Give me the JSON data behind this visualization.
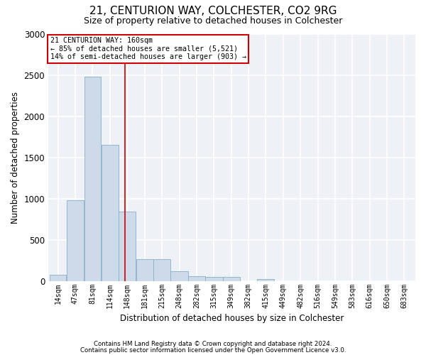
{
  "title1": "21, CENTURION WAY, COLCHESTER, CO2 9RG",
  "title2": "Size of property relative to detached houses in Colchester",
  "xlabel": "Distribution of detached houses by size in Colchester",
  "ylabel": "Number of detached properties",
  "bar_color": "#ccdaea",
  "bar_edge_color": "#8aafc8",
  "categories": [
    "14sqm",
    "47sqm",
    "81sqm",
    "114sqm",
    "148sqm",
    "181sqm",
    "215sqm",
    "248sqm",
    "282sqm",
    "315sqm",
    "349sqm",
    "382sqm",
    "415sqm",
    "449sqm",
    "482sqm",
    "516sqm",
    "549sqm",
    "583sqm",
    "616sqm",
    "650sqm",
    "683sqm"
  ],
  "values": [
    75,
    980,
    2480,
    1650,
    840,
    260,
    265,
    115,
    60,
    48,
    48,
    0,
    25,
    0,
    0,
    0,
    0,
    0,
    0,
    0,
    0
  ],
  "ylim": [
    0,
    3000
  ],
  "yticks": [
    0,
    500,
    1000,
    1500,
    2000,
    2500,
    3000
  ],
  "red_line_x": 160,
  "annotation_line1": "21 CENTURION WAY: 160sqm",
  "annotation_line2": "← 85% of detached houses are smaller (5,521)",
  "annotation_line3": "14% of semi-detached houses are larger (903) →",
  "annotation_box_color": "#ffffff",
  "annotation_box_edge": "#cc0000",
  "red_line_color": "#cc0000",
  "footer1": "Contains HM Land Registry data © Crown copyright and database right 2024.",
  "footer2": "Contains public sector information licensed under the Open Government Licence v3.0.",
  "background_color": "#eef2f7",
  "grid_color": "#ffffff",
  "bin_edges": [
    14,
    47,
    81,
    114,
    148,
    181,
    215,
    248,
    282,
    315,
    349,
    382,
    415,
    449,
    482,
    516,
    549,
    583,
    616,
    650,
    683,
    716
  ]
}
